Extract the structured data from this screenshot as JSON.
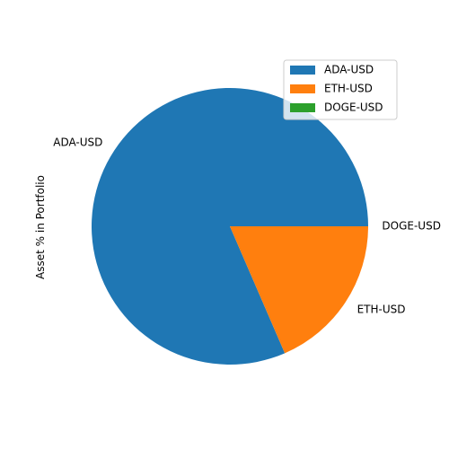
{
  "chart_data": {
    "type": "pie",
    "ylabel": "Asset % in Portfolio",
    "slices": [
      {
        "label": "ADA-USD",
        "value": 81.5,
        "color": "#1f77b4"
      },
      {
        "label": "ETH-USD",
        "value": 18.5,
        "color": "#ff7f0e"
      },
      {
        "label": "DOGE-USD",
        "value": 0.0,
        "color": "#2ca02c"
      }
    ],
    "legend": {
      "placement": "top-right",
      "entries": [
        "ADA-USD",
        "ETH-USD",
        "DOGE-USD"
      ]
    }
  }
}
